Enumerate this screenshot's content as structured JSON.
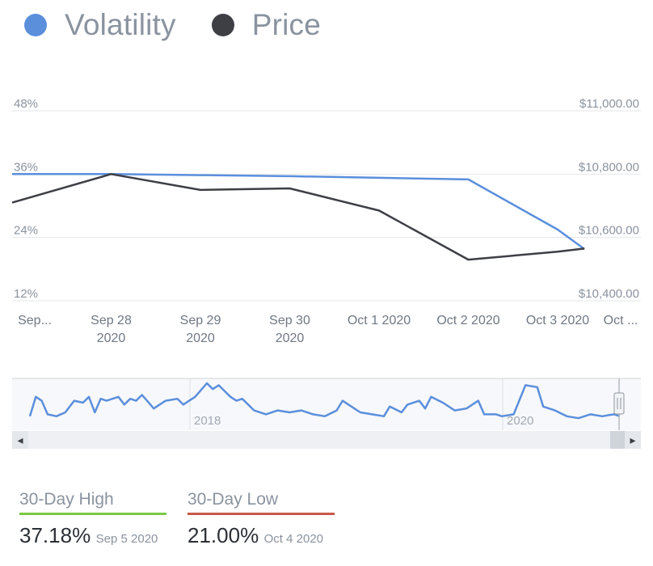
{
  "legend": [
    {
      "label": "Volatility",
      "color": "#5b8fdc"
    },
    {
      "label": "Price",
      "color": "#3d3f45"
    }
  ],
  "chart_data": {
    "type": "line",
    "x": [
      "Sep...",
      "Sep 28 2020",
      "Sep 29 2020",
      "Sep 30 2020",
      "Oct 1 2020",
      "Oct 2 2020",
      "Oct 3 2020",
      "Oct ..."
    ],
    "x_tick_lines": [
      [
        "Sep..."
      ],
      [
        "Sep 28",
        "2020"
      ],
      [
        "Sep 29",
        "2020"
      ],
      [
        "Sep 30",
        "2020"
      ],
      [
        "Oct 1 2020"
      ],
      [
        "Oct 2 2020"
      ],
      [
        "Oct 3 2020"
      ],
      [
        "Oct ..."
      ]
    ],
    "y_left": {
      "ticks": [
        "48%",
        "36%",
        "24%",
        "12%"
      ],
      "range": [
        12,
        48
      ]
    },
    "y_right": {
      "ticks": [
        "$11,000.00",
        "$10,800.00",
        "$10,600.00",
        "$10,400.00"
      ],
      "range": [
        10400,
        11000
      ]
    },
    "series": [
      {
        "name": "Volatility",
        "axis": "left",
        "color": "#5b8fdc",
        "points": [
          [
            0.0,
            36.0
          ],
          [
            1.0,
            36.0
          ],
          [
            2.0,
            35.8
          ],
          [
            3.0,
            35.6
          ],
          [
            4.0,
            35.3
          ],
          [
            5.0,
            35.0
          ],
          [
            6.0,
            25.5
          ],
          [
            6.3,
            21.8
          ]
        ]
      },
      {
        "name": "Price",
        "axis": "right",
        "color": "#3d3f45",
        "points": [
          [
            0.0,
            10710
          ],
          [
            1.0,
            10800
          ],
          [
            2.0,
            10750
          ],
          [
            3.0,
            10755
          ],
          [
            4.0,
            10685
          ],
          [
            5.0,
            10530
          ],
          [
            6.0,
            10555
          ],
          [
            6.3,
            10565
          ]
        ]
      }
    ],
    "grid": true
  },
  "navigator": {
    "labels": [
      "2018",
      "2020"
    ],
    "series": [
      [
        0,
        0.15
      ],
      [
        0.01,
        0.65
      ],
      [
        0.02,
        0.55
      ],
      [
        0.03,
        0.2
      ],
      [
        0.045,
        0.15
      ],
      [
        0.06,
        0.25
      ],
      [
        0.075,
        0.55
      ],
      [
        0.09,
        0.5
      ],
      [
        0.1,
        0.65
      ],
      [
        0.11,
        0.25
      ],
      [
        0.12,
        0.6
      ],
      [
        0.13,
        0.55
      ],
      [
        0.15,
        0.65
      ],
      [
        0.16,
        0.45
      ],
      [
        0.17,
        0.6
      ],
      [
        0.18,
        0.55
      ],
      [
        0.19,
        0.7
      ],
      [
        0.21,
        0.35
      ],
      [
        0.23,
        0.55
      ],
      [
        0.25,
        0.6
      ],
      [
        0.26,
        0.45
      ],
      [
        0.27,
        0.55
      ],
      [
        0.28,
        0.65
      ],
      [
        0.3,
        1.0
      ],
      [
        0.31,
        0.85
      ],
      [
        0.32,
        0.95
      ],
      [
        0.33,
        0.8
      ],
      [
        0.34,
        0.65
      ],
      [
        0.35,
        0.55
      ],
      [
        0.36,
        0.6
      ],
      [
        0.38,
        0.3
      ],
      [
        0.4,
        0.2
      ],
      [
        0.42,
        0.3
      ],
      [
        0.44,
        0.25
      ],
      [
        0.46,
        0.3
      ],
      [
        0.48,
        0.2
      ],
      [
        0.5,
        0.15
      ],
      [
        0.52,
        0.3
      ],
      [
        0.53,
        0.55
      ],
      [
        0.54,
        0.45
      ],
      [
        0.56,
        0.25
      ],
      [
        0.58,
        0.2
      ],
      [
        0.6,
        0.15
      ],
      [
        0.61,
        0.4
      ],
      [
        0.63,
        0.25
      ],
      [
        0.64,
        0.45
      ],
      [
        0.66,
        0.55
      ],
      [
        0.67,
        0.35
      ],
      [
        0.68,
        0.65
      ],
      [
        0.7,
        0.5
      ],
      [
        0.72,
        0.3
      ],
      [
        0.74,
        0.35
      ],
      [
        0.76,
        0.55
      ],
      [
        0.77,
        0.2
      ],
      [
        0.79,
        0.2
      ],
      [
        0.8,
        0.15
      ],
      [
        0.82,
        0.2
      ],
      [
        0.84,
        0.95
      ],
      [
        0.86,
        0.9
      ],
      [
        0.87,
        0.4
      ],
      [
        0.89,
        0.3
      ],
      [
        0.91,
        0.15
      ],
      [
        0.93,
        0.1
      ],
      [
        0.95,
        0.2
      ],
      [
        0.97,
        0.15
      ],
      [
        0.99,
        0.2
      ],
      [
        1.0,
        0.15
      ]
    ],
    "scroll_left": "◂",
    "scroll_right": "▸"
  },
  "stats": [
    {
      "label": "30-Day High",
      "value": "37.18%",
      "date": "Sep 5 2020",
      "color": "#7ac943"
    },
    {
      "label": "30-Day Low",
      "value": "21.00%",
      "date": "Oct 4 2020",
      "color": "#c8584a"
    }
  ]
}
